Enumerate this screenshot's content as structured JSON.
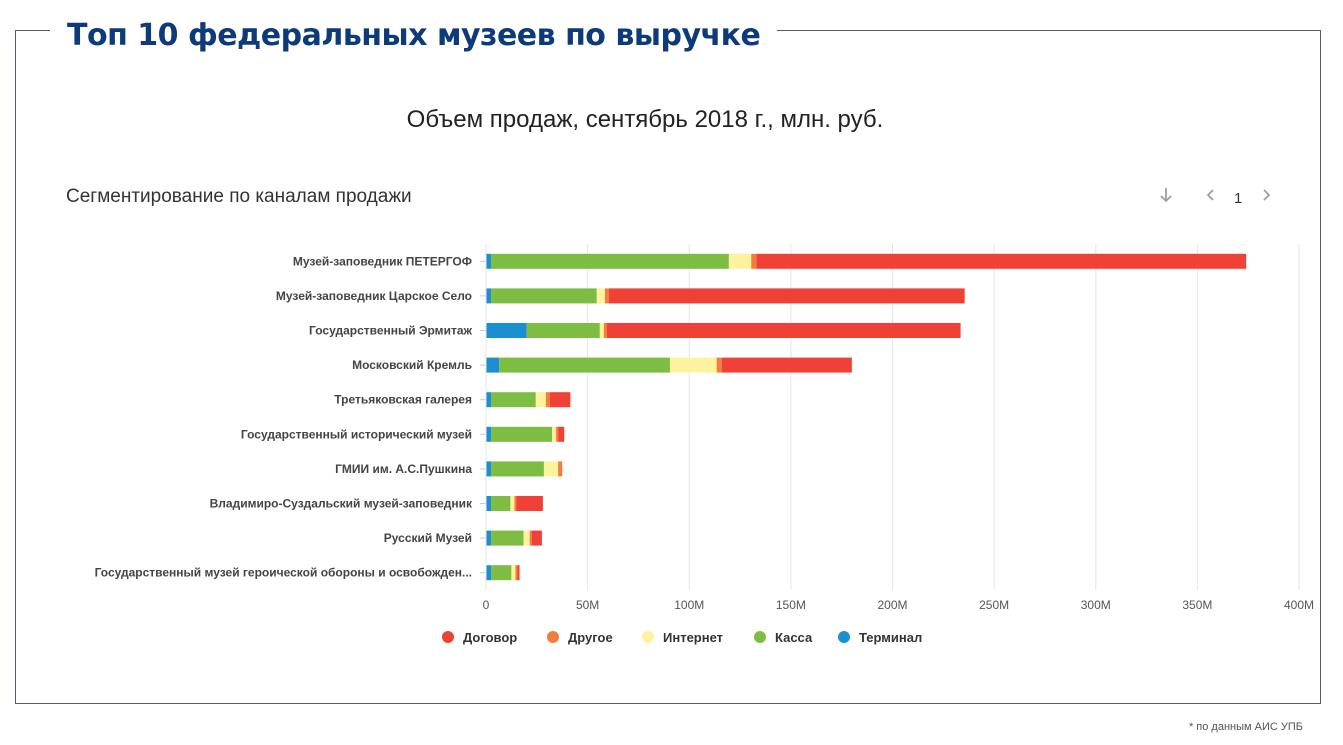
{
  "header": {
    "title": "Топ 10 федеральных музеев по выручке"
  },
  "subtitle": "Объем продаж, сентябрь 2018 г., млн. руб.",
  "segment_title": "Сегментирование по каналам продажи",
  "pager": {
    "page": "1",
    "download_icon": "arrow-down-icon",
    "prev_icon": "chevron-left-icon",
    "next_icon": "chevron-right-icon"
  },
  "footnote": "* по данным АИС УПБ",
  "colors": {
    "Договор": "#ef4136",
    "Другое": "#f47d3b",
    "Интернет": "#fdf29e",
    "Касса": "#7dbd42",
    "Терминал": "#1b8fd2"
  },
  "chart_data": {
    "type": "bar",
    "orientation": "horizontal",
    "stacked": true,
    "title": "Сегментирование по каналам продажи",
    "xlabel": "",
    "ylabel": "",
    "xlim": [
      0,
      400
    ],
    "x_ticks": [
      "0",
      "50M",
      "100M",
      "150M",
      "200M",
      "250M",
      "300M",
      "350M",
      "400M"
    ],
    "grid": true,
    "legend_position": "bottom",
    "categories": [
      "Музей-заповедник ПЕТЕРГОФ",
      "Музей-заповедник Царское Село",
      "Государственный Эрмитаж",
      "Московский Кремль",
      "Третьяковская галерея",
      "Государственный исторический музей",
      "ГМИИ им. А.С.Пушкина",
      "Владимиро-Суздальский музей-заповедник",
      "Русский Музей",
      "Государственный музей героической обороны и освобожден..."
    ],
    "series": [
      {
        "name": "Терминал",
        "values": [
          2.5,
          2.5,
          20,
          6.5,
          2.5,
          2.5,
          2.5,
          2.5,
          2.5,
          2.5
        ]
      },
      {
        "name": "Касса",
        "values": [
          117,
          52,
          36,
          84,
          22,
          30,
          26,
          9.5,
          16,
          10
        ]
      },
      {
        "name": "Интернет",
        "values": [
          11,
          4,
          2,
          23,
          5,
          2,
          7,
          2,
          3,
          2
        ]
      },
      {
        "name": "Другое",
        "values": [
          2.5,
          2,
          1.5,
          2.5,
          2,
          1,
          2,
          1,
          1,
          1
        ]
      },
      {
        "name": "Договор",
        "values": [
          241,
          175,
          174,
          64,
          10,
          3,
          0,
          13,
          5,
          1
        ]
      }
    ]
  }
}
